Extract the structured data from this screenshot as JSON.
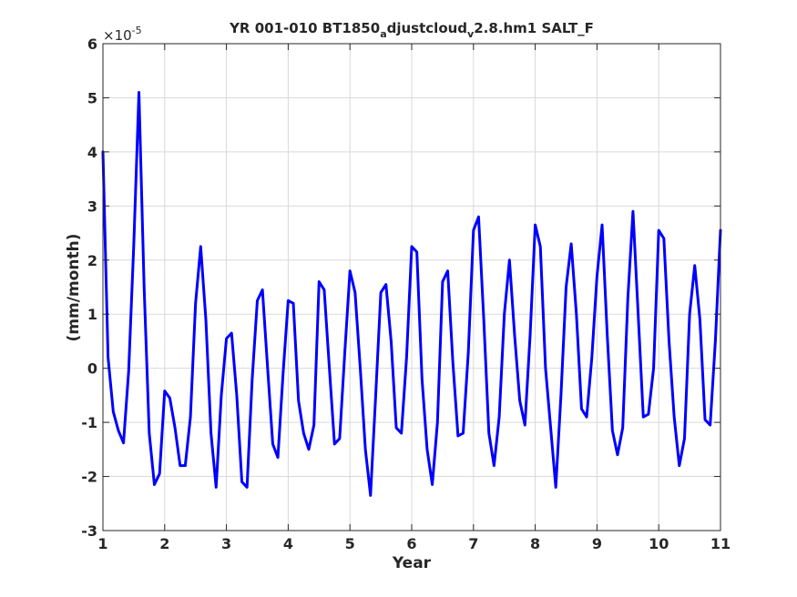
{
  "chart_data": {
    "type": "line",
    "title_parts": [
      "YR 001-010 BT1850",
      "a",
      "djustcloud",
      "v",
      "2.8.hm1 SALT_F"
    ],
    "xlabel": "Year",
    "ylabel": "(mm/month)",
    "y_multiplier": "×10",
    "y_exponent": "-5",
    "xlim": [
      1,
      11
    ],
    "ylim": [
      -3,
      6
    ],
    "x_ticks": [
      1,
      2,
      3,
      4,
      5,
      6,
      7,
      8,
      9,
      10,
      11
    ],
    "y_ticks": [
      -3,
      -2,
      -1,
      0,
      1,
      2,
      3,
      4,
      5,
      6
    ],
    "x_tick_labels": [
      "1",
      "2",
      "3",
      "4",
      "5",
      "6",
      "7",
      "8",
      "9",
      "10",
      "11"
    ],
    "y_tick_labels": [
      "-3",
      "-2",
      "-1",
      "0",
      "1",
      "2",
      "3",
      "4",
      "5",
      "6"
    ],
    "grid": true,
    "line_color": "#0000ff",
    "series": [
      {
        "x": [
          1.0,
          1.083,
          1.167,
          1.25,
          1.333,
          1.417,
          1.5,
          1.583,
          1.667,
          1.75,
          1.833,
          1.917,
          2.0,
          2.083,
          2.167,
          2.25,
          2.333,
          2.417,
          2.5,
          2.583,
          2.667,
          2.75,
          2.833,
          2.917,
          3.0,
          3.083,
          3.167,
          3.25,
          3.333,
          3.417,
          3.5,
          3.583,
          3.667,
          3.75,
          3.833,
          3.917,
          4.0,
          4.083,
          4.167,
          4.25,
          4.333,
          4.417,
          4.5,
          4.583,
          4.667,
          4.75,
          4.833,
          4.917,
          5.0,
          5.083,
          5.167,
          5.25,
          5.333,
          5.417,
          5.5,
          5.583,
          5.667,
          5.75,
          5.833,
          5.917,
          6.0,
          6.083,
          6.167,
          6.25,
          6.333,
          6.417,
          6.5,
          6.583,
          6.667,
          6.75,
          6.833,
          6.917,
          7.0,
          7.083,
          7.167,
          7.25,
          7.333,
          7.417,
          7.5,
          7.583,
          7.667,
          7.75,
          7.833,
          7.917,
          8.0,
          8.083,
          8.167,
          8.25,
          8.333,
          8.417,
          8.5,
          8.583,
          8.667,
          8.75,
          8.833,
          8.917,
          9.0,
          9.083,
          9.167,
          9.25,
          9.333,
          9.417,
          9.5,
          9.583,
          9.667,
          9.75,
          9.833,
          9.917,
          10.0,
          10.083,
          10.167,
          10.25,
          10.333,
          10.417,
          10.5,
          10.583,
          10.667,
          10.75,
          10.833,
          10.917,
          11.0
        ],
        "y": [
          4.0,
          0.2,
          -0.8,
          -1.15,
          -1.38,
          -0.05,
          2.3,
          5.1,
          1.5,
          -1.2,
          -2.15,
          -1.95,
          -0.42,
          -0.55,
          -1.1,
          -1.8,
          -1.8,
          -0.9,
          1.2,
          2.25,
          0.9,
          -1.2,
          -2.2,
          -0.5,
          0.55,
          0.65,
          -0.5,
          -2.1,
          -2.2,
          -0.2,
          1.25,
          1.45,
          0.0,
          -1.4,
          -1.65,
          -0.1,
          1.25,
          1.2,
          -0.6,
          -1.2,
          -1.5,
          -1.05,
          1.6,
          1.45,
          0.0,
          -1.4,
          -1.3,
          0.3,
          1.8,
          1.4,
          0.0,
          -1.5,
          -2.35,
          -0.5,
          1.4,
          1.55,
          0.5,
          -1.1,
          -1.2,
          0.2,
          2.25,
          2.15,
          -0.2,
          -1.5,
          -2.15,
          -1.0,
          1.6,
          1.8,
          0.1,
          -1.25,
          -1.2,
          0.3,
          2.55,
          2.8,
          0.9,
          -1.2,
          -1.8,
          -0.9,
          1.0,
          2.0,
          0.6,
          -0.6,
          -1.05,
          0.6,
          2.65,
          2.25,
          0.0,
          -1.1,
          -2.2,
          -0.5,
          1.5,
          2.3,
          1.0,
          -0.75,
          -0.9,
          0.2,
          1.7,
          2.65,
          0.6,
          -1.15,
          -1.6,
          -1.1,
          1.3,
          2.9,
          1.0,
          -0.9,
          -0.85,
          0.0,
          2.55,
          2.4,
          0.5,
          -0.9,
          -1.8,
          -1.3,
          1.0,
          1.9,
          0.9,
          -0.95,
          -1.05,
          0.5,
          2.55
        ]
      }
    ]
  }
}
